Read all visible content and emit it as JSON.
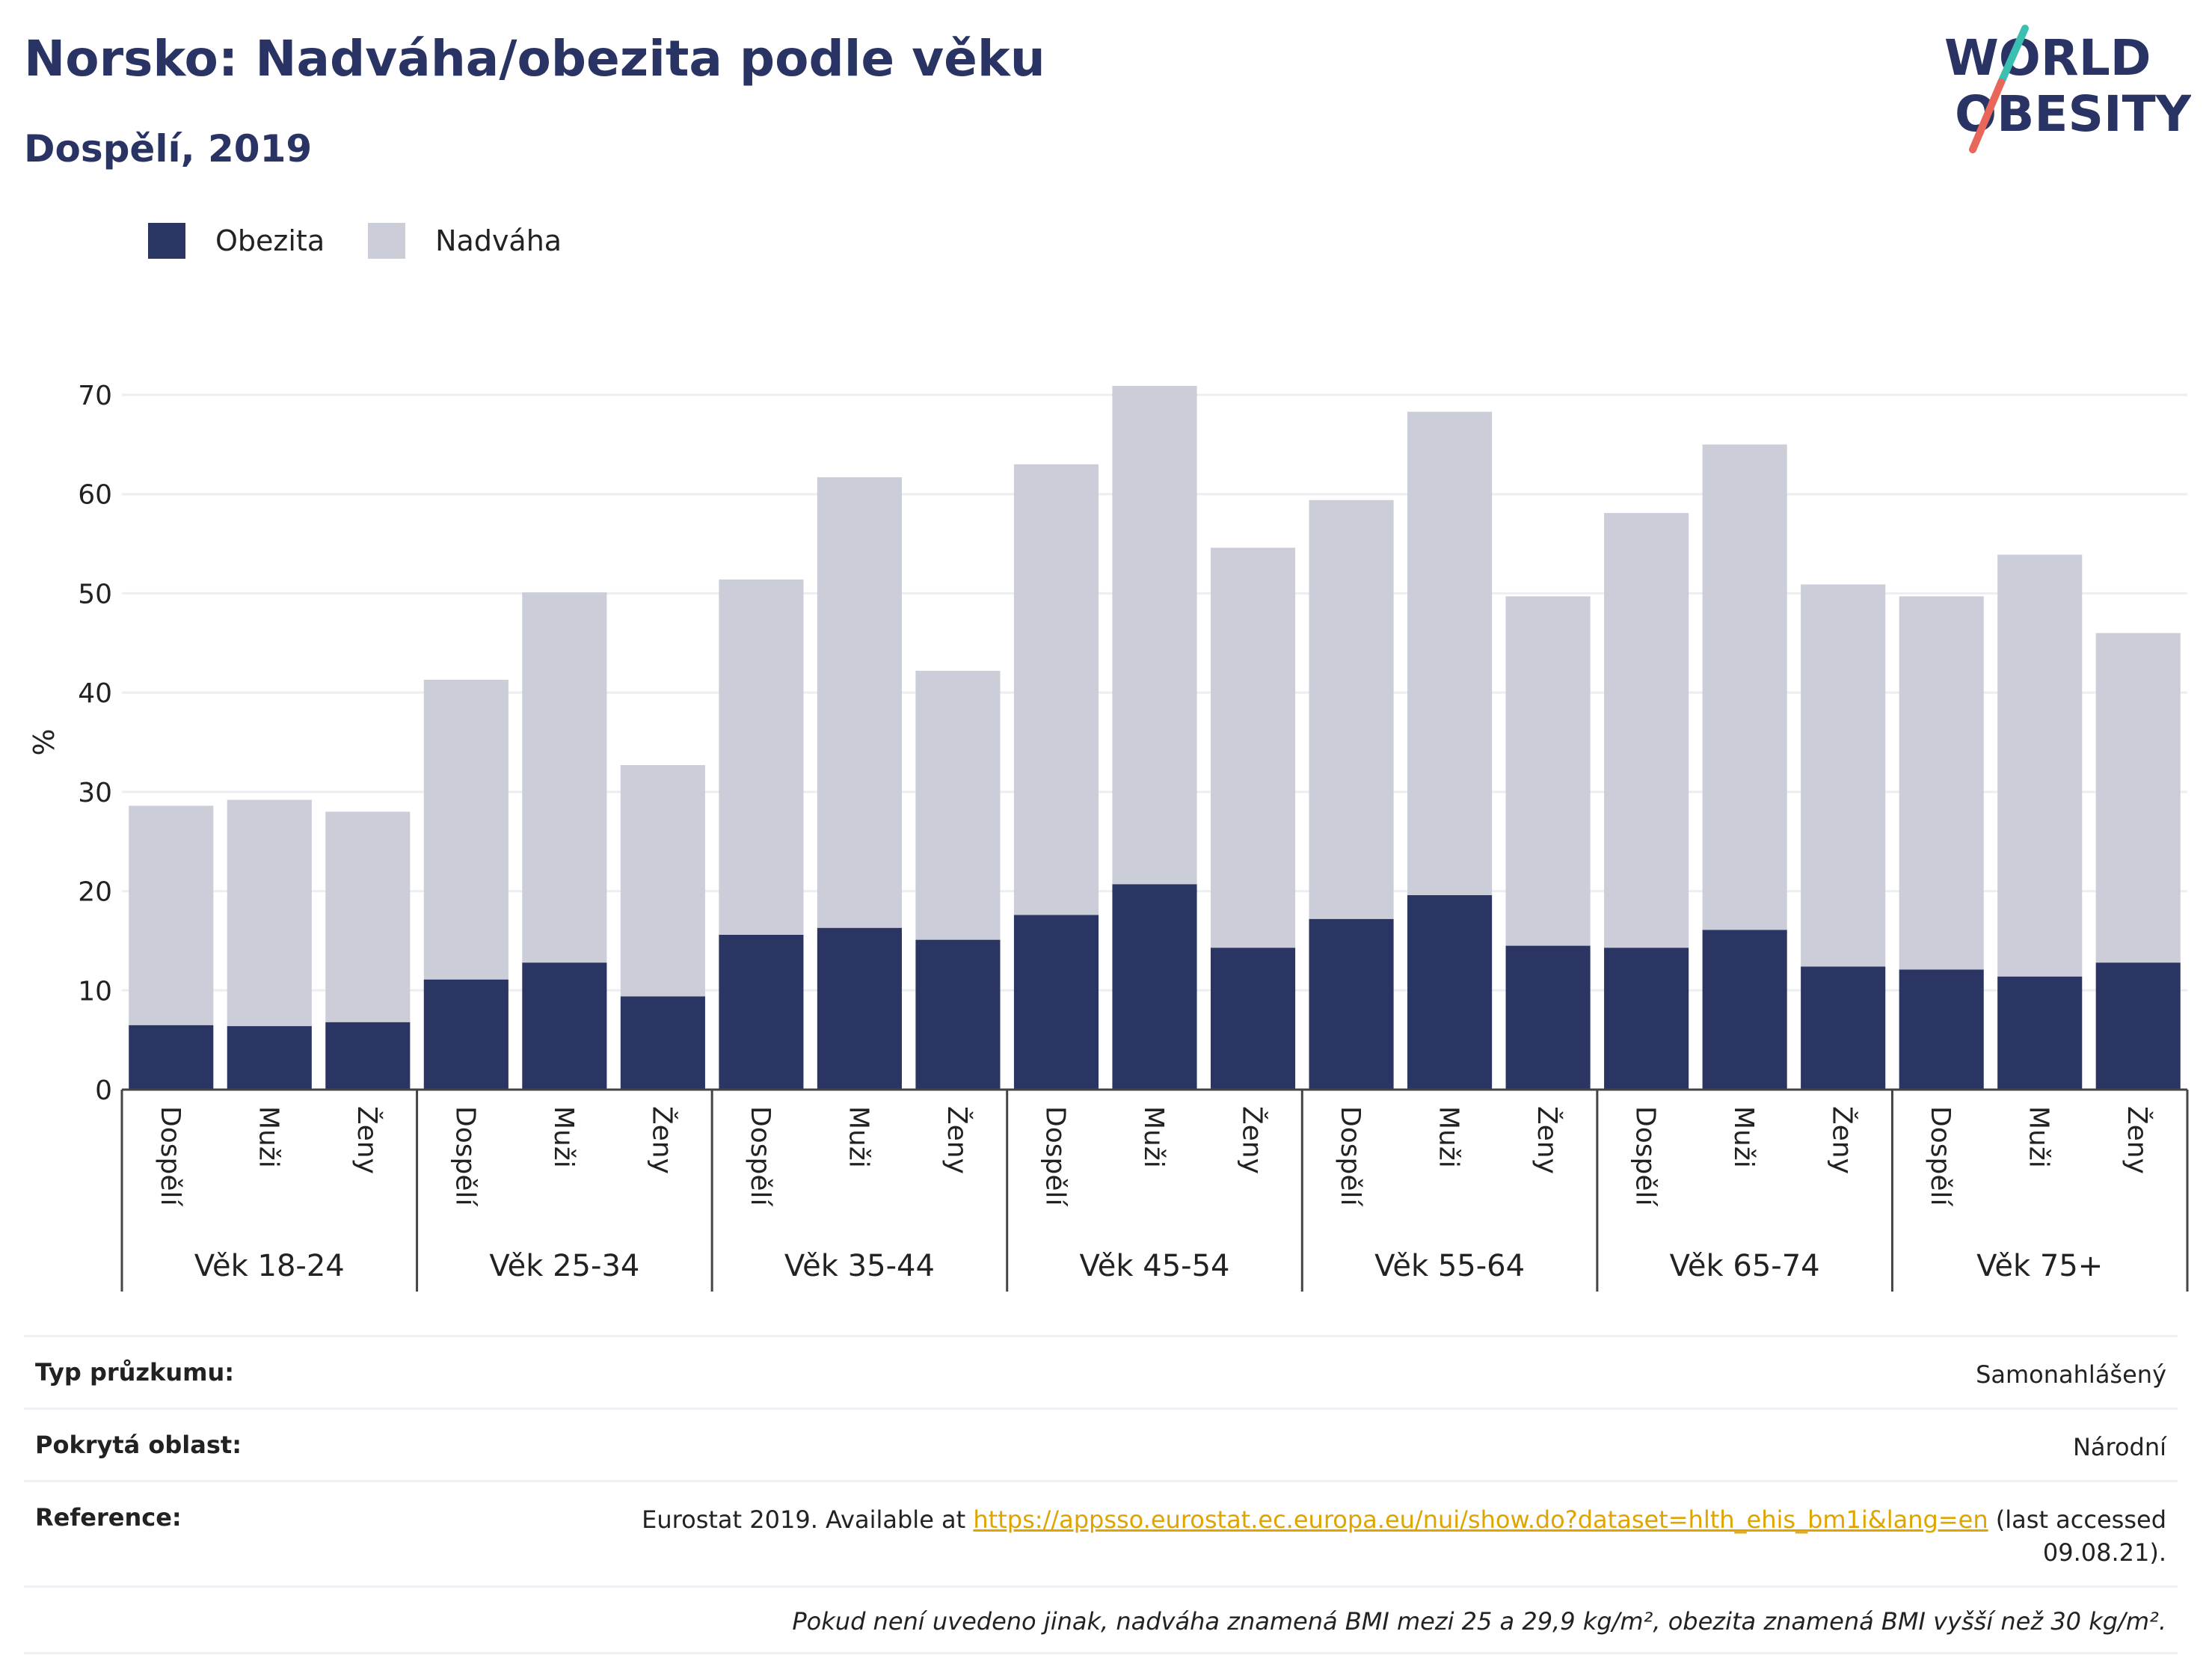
{
  "header": {
    "title": "Norsko: Nadváha/obezita podle věku",
    "subtitle": "Dospělí, 2019"
  },
  "logo": {
    "line1": "WORLD",
    "line2": "OBESITY"
  },
  "colors": {
    "obesity": "#2a3563",
    "overweight": "#cbcdd9",
    "accent_teal": "#3bbfb0",
    "accent_red": "#e8665a",
    "title": "#2a3464"
  },
  "chart_data": {
    "type": "bar",
    "stacked": true,
    "ylabel": "%",
    "ylim": [
      0,
      70
    ],
    "yticks": [
      0,
      10,
      20,
      30,
      40,
      50,
      60,
      70
    ],
    "grid": true,
    "legend": {
      "placement": "top-left",
      "entries": [
        "Obezita",
        "Nadváha"
      ]
    },
    "groups": [
      "Věk 18-24",
      "Věk 25-34",
      "Věk 35-44",
      "Věk 45-54",
      "Věk 55-64",
      "Věk 65-74",
      "Věk 75+"
    ],
    "subcategories": [
      "Dospělí",
      "Muži",
      "Ženy"
    ],
    "series": [
      {
        "name": "Obezita",
        "values": [
          6.5,
          6.4,
          6.8,
          11.1,
          12.8,
          9.4,
          15.6,
          16.3,
          15.1,
          17.6,
          20.7,
          14.3,
          17.2,
          19.6,
          14.5,
          14.3,
          16.1,
          12.4,
          12.1,
          11.4,
          12.8
        ]
      },
      {
        "name": "Nadváha",
        "values": [
          22.1,
          22.8,
          21.2,
          30.2,
          37.3,
          23.3,
          35.8,
          45.4,
          27.1,
          45.4,
          50.2,
          40.3,
          42.2,
          48.7,
          35.2,
          43.8,
          48.9,
          38.5,
          37.6,
          42.5,
          33.2
        ]
      }
    ]
  },
  "info": {
    "survey_type_label": "Typ průzkumu:",
    "survey_type_value": "Samonahlášený",
    "coverage_label": "Pokrytá oblast:",
    "coverage_value": "Národní",
    "reference_label": "Reference:",
    "reference_prefix": "Eurostat 2019. Available at ",
    "reference_link": "https://appsso.eurostat.ec.europa.eu/nui/show.do?dataset=hlth_ehis_bm1i&lang=en",
    "reference_suffix": " (last accessed 09.08.21).",
    "note": "Pokud není uvedeno jinak, nadváha znamená BMI mezi 25 a 29,9 kg/m², obezita znamená BMI vyšší než 30 kg/m²."
  }
}
